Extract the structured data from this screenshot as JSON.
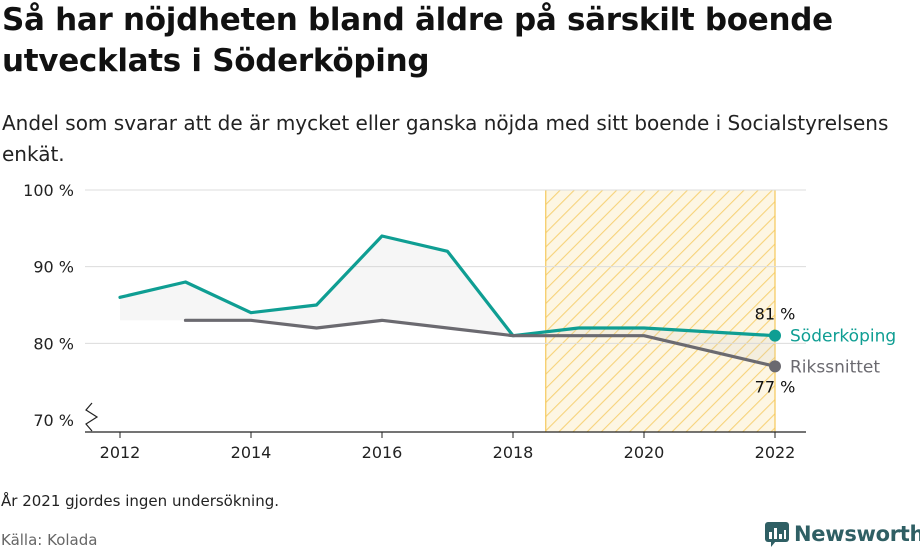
{
  "header": {
    "title": "Så har nöjdheten bland äldre på särskilt boende utvecklats i Söderköping",
    "subtitle": "Andel som svarar att de är mycket eller ganska nöjda med sitt boende i Socialstyrelsens enkät."
  },
  "footer": {
    "note": "År 2021 gjordes ingen undersökning.",
    "source": "Källa: Kolada",
    "brand": "Newsworthy"
  },
  "chart_data": {
    "type": "line",
    "x_ticks": [
      2012,
      2014,
      2016,
      2018,
      2020,
      2022
    ],
    "y_ticks": [
      70,
      80,
      90,
      100
    ],
    "y_tick_labels": [
      "70 %",
      "80 %",
      "90 %",
      "100 %"
    ],
    "xlim": [
      2012,
      2022
    ],
    "ylim": [
      70,
      100
    ],
    "grid": true,
    "highlight_range": [
      2018.5,
      2022
    ],
    "series": [
      {
        "name": "Söderköping",
        "color": "#0f9e93",
        "x": [
          2012,
          2013,
          2014,
          2015,
          2016,
          2017,
          2018,
          2019,
          2020,
          2022
        ],
        "y": [
          86,
          88,
          84,
          85,
          94,
          92,
          81,
          82,
          82,
          81
        ],
        "end_label": "81 %"
      },
      {
        "name": "Rikssnittet",
        "color": "#6b6a70",
        "x": [
          2013,
          2014,
          2015,
          2016,
          2017,
          2018,
          2019,
          2020,
          2022
        ],
        "y": [
          83,
          83,
          82,
          83,
          82,
          81,
          81,
          81,
          77
        ],
        "end_label": "77 %"
      }
    ]
  },
  "colors": {
    "highlight_fill": "#fdf6e3",
    "highlight_stripe": "#f7d37a",
    "brand": "#2f5f64"
  }
}
